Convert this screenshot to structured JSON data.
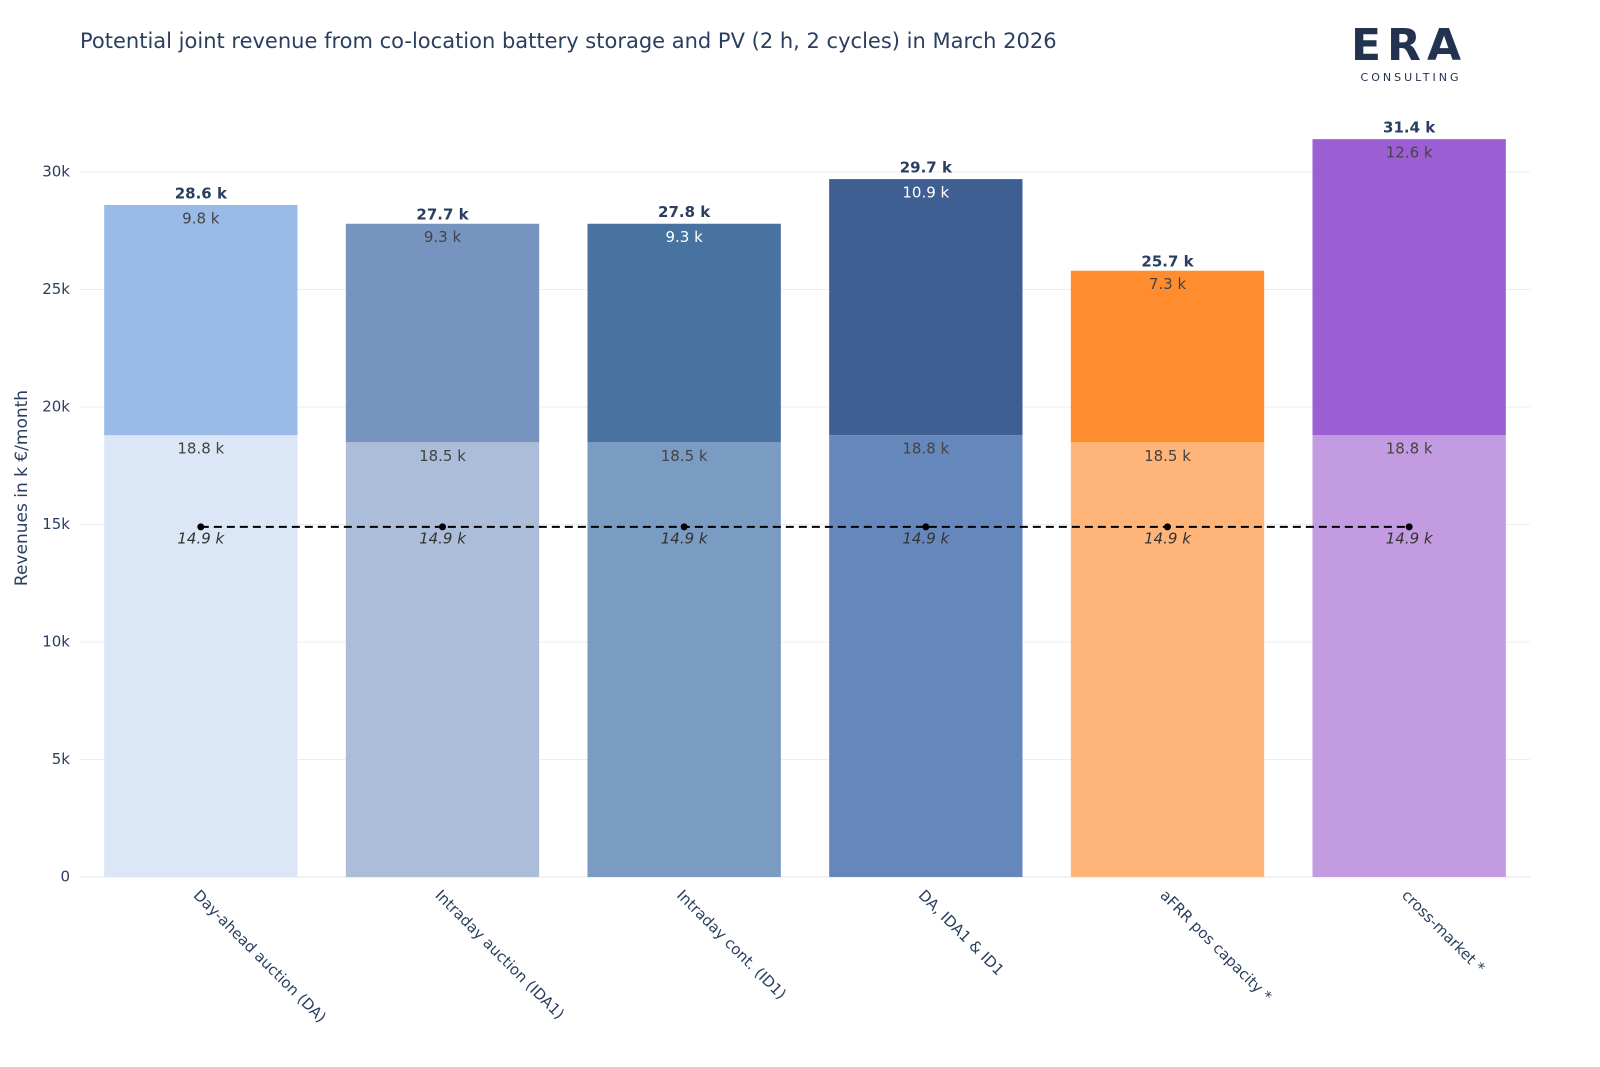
{
  "chart_data": {
    "type": "stacked_bar",
    "title": "Potential joint revenue from co-location battery storage and PV (2 h, 2 cycles) in March 2026",
    "logo": {
      "text": "ERA",
      "subtext": "CONSULTING"
    },
    "y_label": "Revenues in k €/month",
    "categories": [
      "Day-ahead auction (DA)",
      "Intraday auction (IDA1)",
      "Intraday cont. (ID1)",
      "DA, IDA1 & ID1",
      "aFRR pos capacity *",
      "cross-market *"
    ],
    "series": [
      {
        "colors": [
          "#dbe6f6",
          "#abbdd9",
          "#7a9bc2",
          "#6587bb",
          "#ffb47a",
          "#c39be0"
        ],
        "values": [
          18.8,
          18.5,
          18.5,
          18.8,
          18.5,
          18.8
        ],
        "value_labels": [
          "18.8 k",
          "18.5 k",
          "18.5 k",
          "18.8 k",
          "18.5 k",
          "18.8 k"
        ]
      },
      {
        "colors": [
          "#9abbe8",
          "#7694bf",
          "#4873a0",
          "#3f5f93",
          "#ff8c2e",
          "#9b5fd3"
        ],
        "values": [
          9.8,
          9.3,
          9.3,
          10.9,
          7.3,
          12.6
        ],
        "value_labels": [
          "9.8 k",
          "9.3 k",
          "9.3 k",
          "10.9 k",
          "7.3 k",
          "12.6 k"
        ]
      }
    ],
    "totals": {
      "values": [
        28.6,
        27.7,
        27.8,
        29.7,
        25.7,
        31.4
      ],
      "value_labels": [
        "28.6 k",
        "27.7 k",
        "27.8 k",
        "29.7 k",
        "25.7 k",
        "31.4 k"
      ]
    },
    "reference_line": {
      "color": "#000000",
      "values": [
        14.9,
        14.9,
        14.9,
        14.9,
        14.9,
        14.9
      ],
      "value_labels": [
        "14.9 k",
        "14.9 k",
        "14.9 k",
        "14.9 k",
        "14.9 k",
        "14.9 k"
      ]
    },
    "ylim": [
      0,
      32.3
    ],
    "yticks": [
      0,
      {
        "value": 5,
        "label": "5k"
      },
      {
        "value": 10,
        "label": "10k"
      },
      {
        "value": 15,
        "label": "15k"
      },
      {
        "value": 20,
        "label": "20k"
      },
      {
        "value": 25,
        "label": "25k"
      },
      {
        "value": 30,
        "label": "30k"
      }
    ],
    "grid": true
  }
}
